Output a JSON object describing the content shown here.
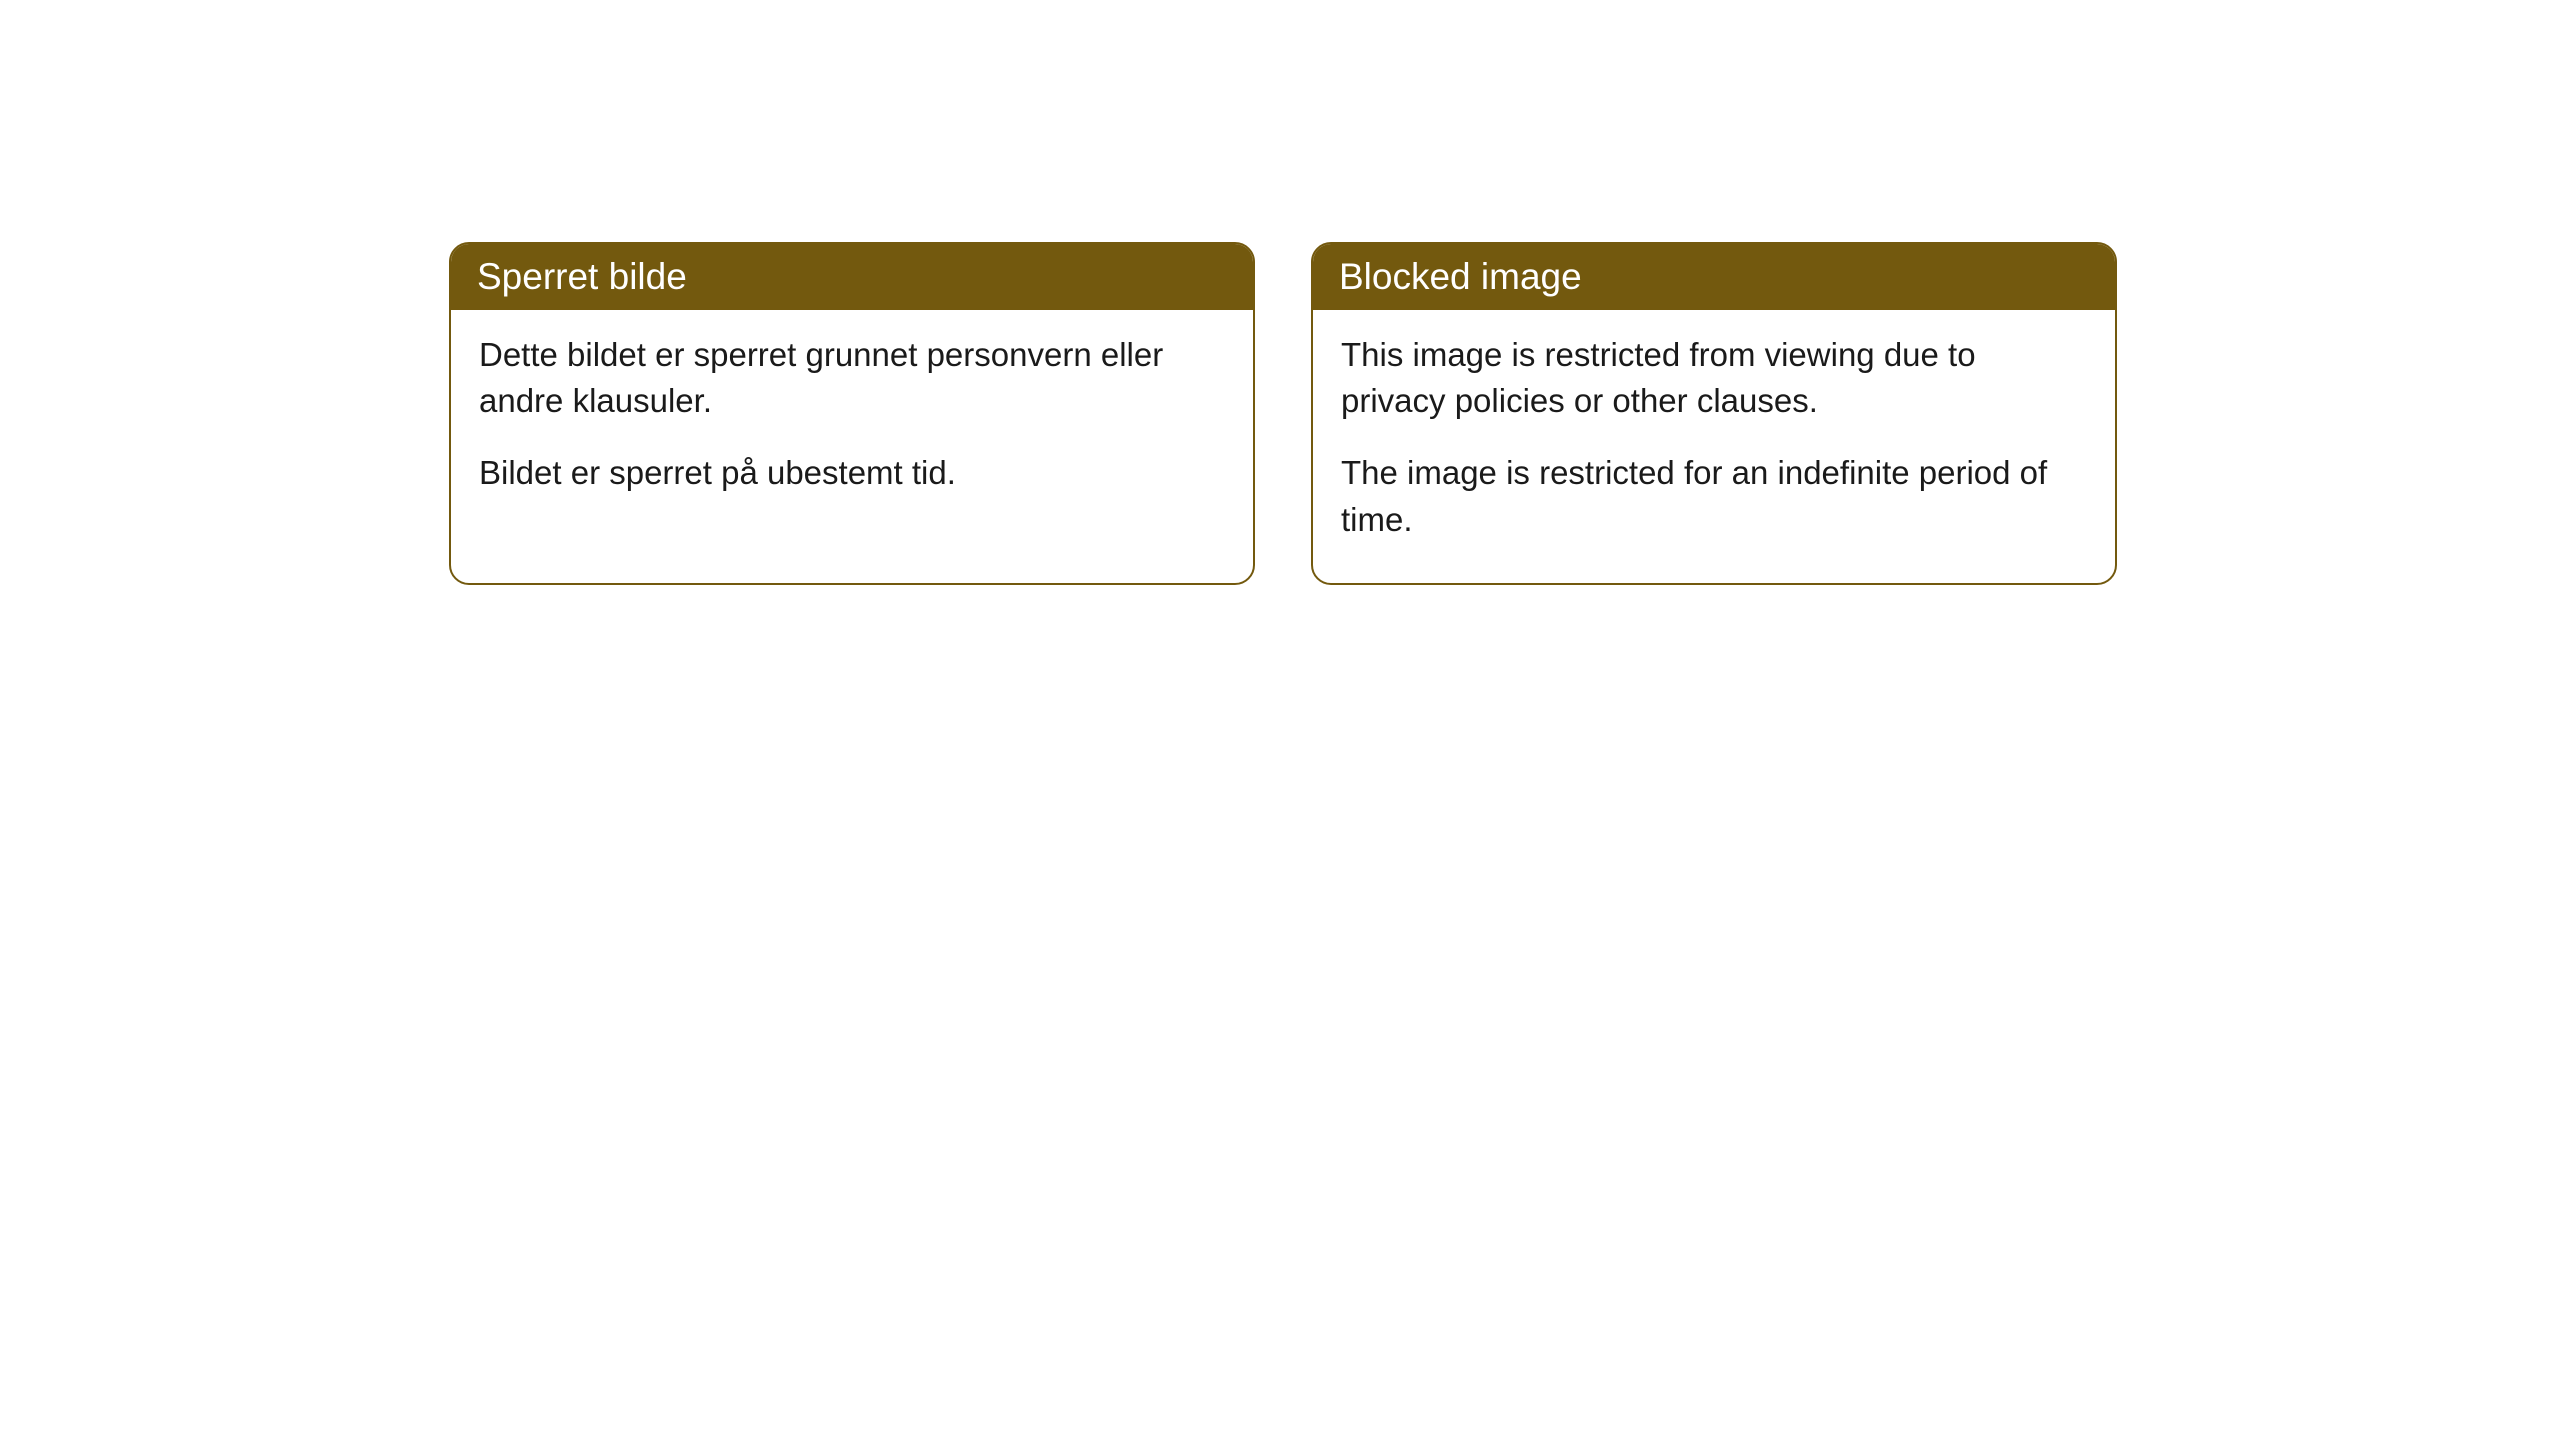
{
  "cards": [
    {
      "title": "Sperret bilde",
      "paragraph1": "Dette bildet er sperret grunnet personvern eller andre klausuler.",
      "paragraph2": "Bildet er sperret på ubestemt tid."
    },
    {
      "title": "Blocked image",
      "paragraph1": "This image is restricted from viewing due to privacy policies or other clauses.",
      "paragraph2": "The image is restricted for an indefinite period of time."
    }
  ],
  "styling": {
    "header_bg_color": "#73590e",
    "header_text_color": "#ffffff",
    "card_border_color": "#73590e",
    "card_bg_color": "#ffffff",
    "body_text_color": "#1a1a1a",
    "page_bg_color": "#ffffff",
    "border_radius": "20px",
    "header_fontsize": "37px",
    "body_fontsize": "33px"
  }
}
